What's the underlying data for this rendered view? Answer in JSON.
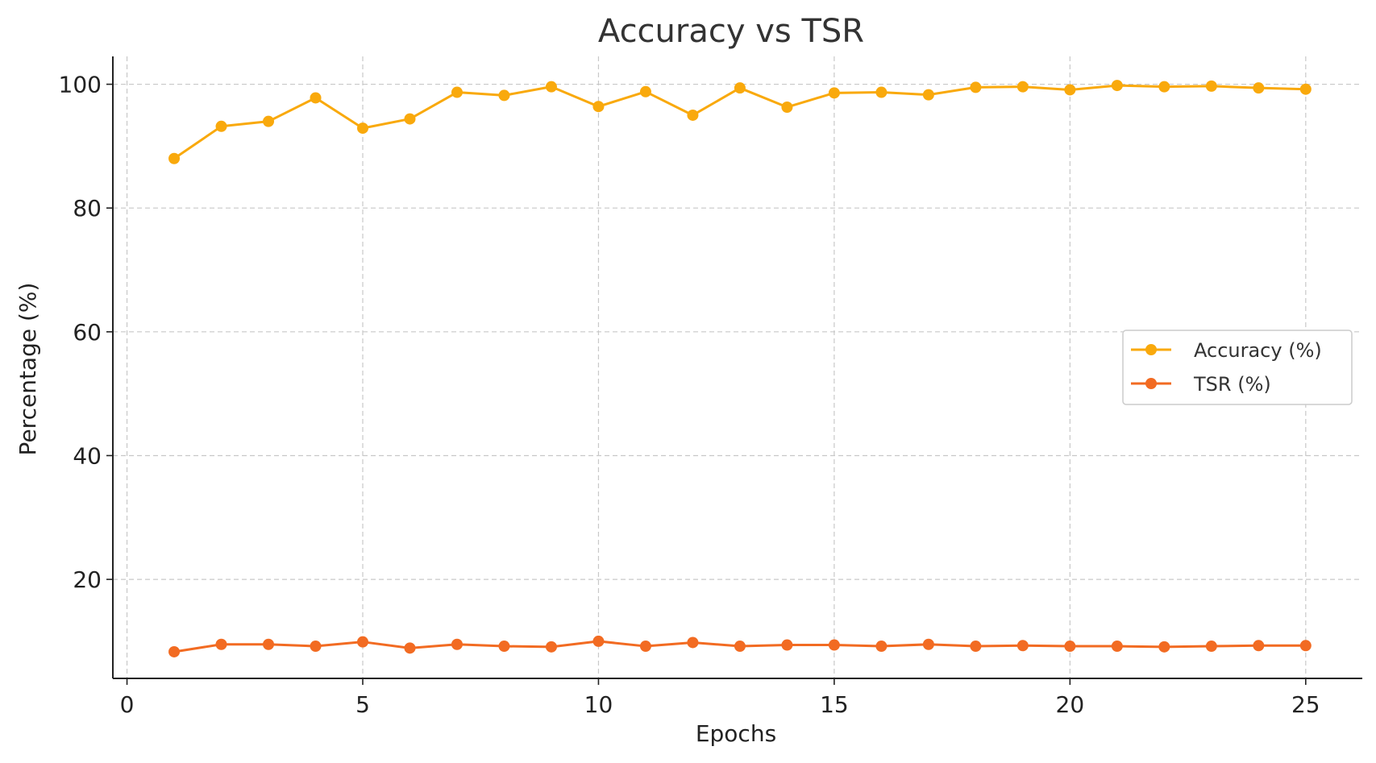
{
  "chart_data": {
    "type": "line",
    "title": "Accuracy vs TSR",
    "xlabel": "Epochs",
    "ylabel": "Percentage (%)",
    "xlim": [
      -0.3,
      26.2
    ],
    "ylim": [
      4,
      104.5
    ],
    "x_ticks": [
      0,
      5,
      10,
      15,
      20,
      25
    ],
    "y_ticks": [
      20,
      40,
      60,
      80,
      100
    ],
    "x_tick_labels": [
      "0",
      "5",
      "10",
      "15",
      "20",
      "25"
    ],
    "y_tick_labels": [
      "20",
      "40",
      "60",
      "80",
      "100"
    ],
    "grid": true,
    "legend_position": "center-right",
    "x": [
      1,
      2,
      3,
      4,
      5,
      6,
      7,
      8,
      9,
      10,
      11,
      12,
      13,
      14,
      15,
      16,
      17,
      18,
      19,
      20,
      21,
      22,
      23,
      24,
      25
    ],
    "series": [
      {
        "name": "Accuracy (%)",
        "color": "#F9A90C",
        "values": [
          88.0,
          93.2,
          94.0,
          97.8,
          92.9,
          94.4,
          98.7,
          98.2,
          99.6,
          96.4,
          98.8,
          95.0,
          99.4,
          96.3,
          98.6,
          98.7,
          98.3,
          99.5,
          99.6,
          99.1,
          99.8,
          99.6,
          99.7,
          99.4,
          99.2
        ]
      },
      {
        "name": "TSR (%)",
        "color": "#F26B22",
        "values": [
          8.3,
          9.5,
          9.5,
          9.2,
          9.9,
          8.9,
          9.5,
          9.2,
          9.1,
          10.0,
          9.2,
          9.8,
          9.2,
          9.4,
          9.4,
          9.2,
          9.5,
          9.2,
          9.3,
          9.2,
          9.2,
          9.1,
          9.2,
          9.3,
          9.3
        ]
      }
    ]
  }
}
